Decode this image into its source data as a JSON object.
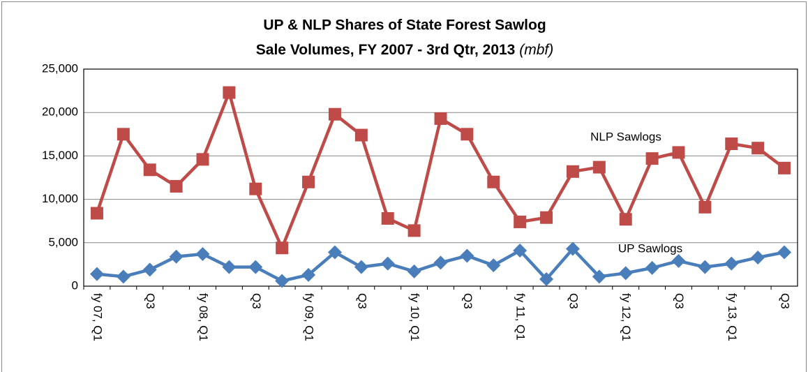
{
  "chart_data": {
    "type": "line",
    "title": [
      "UP & NLP Shares of State Forest Sawlog",
      "Sale Volumes, FY 2007 - 3rd Qtr, 2013"
    ],
    "title_unit": "(mbf)",
    "categories": [
      "fy 07, Q1",
      null,
      "Q3",
      null,
      "fy 08, Q1",
      null,
      "Q3",
      null,
      "fy 09, Q1",
      null,
      "Q3",
      null,
      "fy 10, Q1",
      null,
      "Q3",
      null,
      "fy 11, Q1",
      null,
      "Q3",
      null,
      "fy 12, Q1",
      null,
      "Q3",
      null,
      "fy 13, Q1",
      null,
      "Q3"
    ],
    "series": [
      {
        "name": "NLP Sawlogs",
        "color": "#be4b48",
        "marker": "square",
        "values": [
          8400,
          17500,
          13400,
          11500,
          14600,
          22300,
          11200,
          4400,
          12000,
          19800,
          17400,
          7800,
          6400,
          19300,
          17500,
          12000,
          7400,
          7900,
          13200,
          13700,
          7700,
          14700,
          15400,
          9100,
          16400,
          15900,
          13600
        ]
      },
      {
        "name": "UP Sawlogs",
        "color": "#4a7ebb",
        "marker": "diamond",
        "values": [
          1400,
          1100,
          1900,
          3400,
          3700,
          2200,
          2200,
          600,
          1300,
          3900,
          2200,
          2600,
          1700,
          2700,
          3500,
          2400,
          4100,
          800,
          4300,
          1100,
          1500,
          2100,
          2900,
          2200,
          2600,
          3300,
          3900
        ]
      }
    ],
    "ylim": [
      0,
      25000
    ],
    "yticks": [
      0,
      {
        "value": 5000,
        "label": "5,000"
      },
      {
        "value": 10000,
        "label": "10,000"
      },
      {
        "value": 15000,
        "label": "15,000"
      },
      {
        "value": 20000,
        "label": "20,000"
      },
      {
        "value": 25000,
        "label": "25,000"
      }
    ],
    "grid": true
  }
}
